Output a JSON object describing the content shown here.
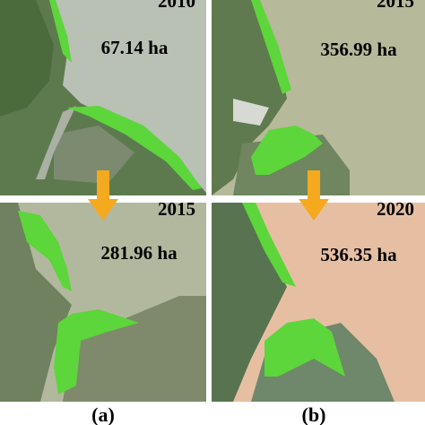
{
  "panels": [
    {
      "year": "2010",
      "area": "67.14 ha"
    },
    {
      "year": "2015",
      "area": "356.99 ha"
    },
    {
      "year": "2015",
      "area": "281.96 ha"
    },
    {
      "year": "2020",
      "area": "536.35 ha"
    }
  ],
  "captions": [
    "(a)",
    "(b)"
  ]
}
